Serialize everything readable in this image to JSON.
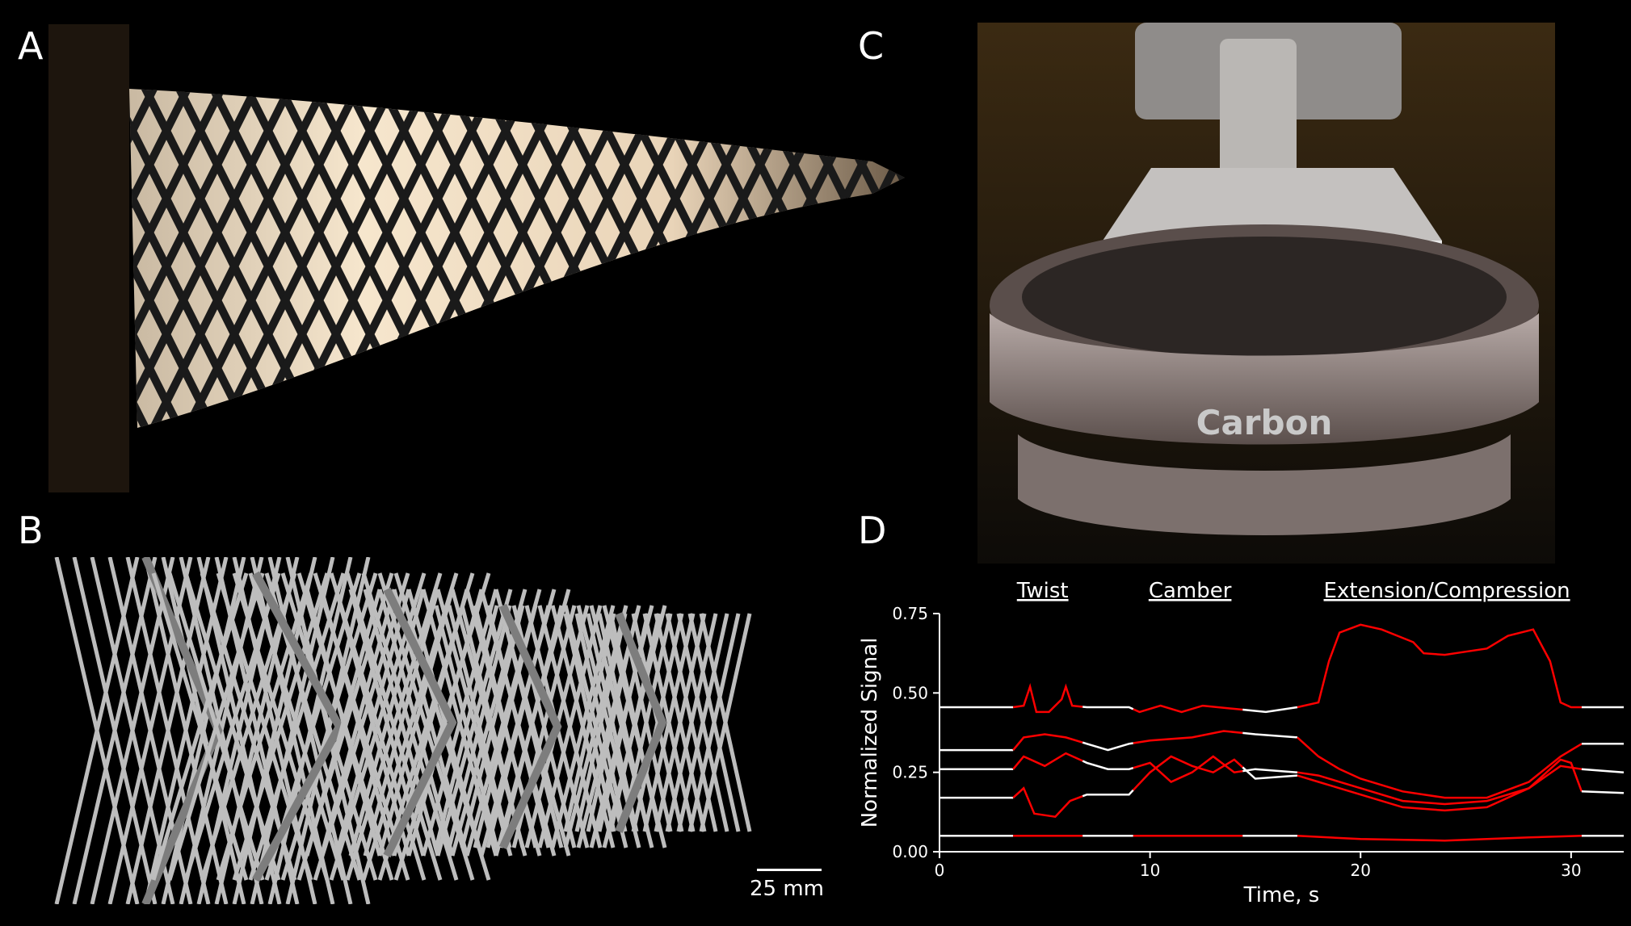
{
  "panels": {
    "a": {
      "letter": "A"
    },
    "b": {
      "letter": "B",
      "scalebar": "25 mm"
    },
    "c": {
      "letter": "C",
      "brand_text": "Carbon"
    },
    "d": {
      "letter": "D"
    }
  },
  "chart_data": {
    "type": "line",
    "title": "",
    "xlabel": "Time, s",
    "ylabel": "Normalized Signal",
    "xlim": [
      0,
      32.5
    ],
    "ylim": [
      0,
      0.75
    ],
    "xticks": [
      0,
      10,
      20,
      30
    ],
    "yticks": [
      "0.00",
      "0.25",
      "0.50",
      "0.75"
    ],
    "annotations": [
      "Twist",
      "Camber",
      "Extension/Compression"
    ],
    "colors": {
      "active": "#ff0000",
      "rest": "#ffffff",
      "axes": "#ffffff"
    },
    "series": [
      {
        "values": [
          [
            0,
            0.455
          ],
          [
            3.5,
            0.455
          ],
          [
            4.0,
            0.46
          ],
          [
            4.3,
            0.52
          ],
          [
            4.6,
            0.44
          ],
          [
            5.2,
            0.44
          ],
          [
            5.8,
            0.48
          ],
          [
            6.0,
            0.52
          ],
          [
            6.3,
            0.46
          ],
          [
            7,
            0.455
          ],
          [
            9,
            0.455
          ],
          [
            9.5,
            0.44
          ],
          [
            10.5,
            0.46
          ],
          [
            11.5,
            0.44
          ],
          [
            12.5,
            0.46
          ],
          [
            14,
            0.45
          ],
          [
            15.5,
            0.44
          ],
          [
            17,
            0.455
          ],
          [
            18,
            0.47
          ],
          [
            18.5,
            0.6
          ],
          [
            19,
            0.69
          ],
          [
            20,
            0.715
          ],
          [
            21,
            0.7
          ],
          [
            22.5,
            0.66
          ],
          [
            23,
            0.625
          ],
          [
            24,
            0.62
          ],
          [
            25,
            0.63
          ],
          [
            26,
            0.64
          ],
          [
            27,
            0.68
          ],
          [
            28.2,
            0.7
          ],
          [
            29,
            0.6
          ],
          [
            29.5,
            0.47
          ],
          [
            30,
            0.455
          ],
          [
            32.5,
            0.455
          ]
        ]
      },
      {
        "values": [
          [
            0,
            0.32
          ],
          [
            3.5,
            0.32
          ],
          [
            4,
            0.36
          ],
          [
            5,
            0.37
          ],
          [
            6,
            0.36
          ],
          [
            7,
            0.34
          ],
          [
            8,
            0.32
          ],
          [
            9,
            0.34
          ],
          [
            10,
            0.35
          ],
          [
            12,
            0.36
          ],
          [
            13.5,
            0.38
          ],
          [
            15,
            0.37
          ],
          [
            17,
            0.36
          ],
          [
            18,
            0.3
          ],
          [
            19,
            0.26
          ],
          [
            20,
            0.23
          ],
          [
            22,
            0.19
          ],
          [
            24,
            0.17
          ],
          [
            26,
            0.17
          ],
          [
            28,
            0.22
          ],
          [
            29.5,
            0.3
          ],
          [
            30.5,
            0.34
          ],
          [
            32.5,
            0.34
          ]
        ]
      },
      {
        "values": [
          [
            0,
            0.26
          ],
          [
            3.5,
            0.26
          ],
          [
            4,
            0.3
          ],
          [
            5,
            0.27
          ],
          [
            6,
            0.31
          ],
          [
            7,
            0.28
          ],
          [
            8,
            0.26
          ],
          [
            9,
            0.26
          ],
          [
            10,
            0.28
          ],
          [
            11,
            0.22
          ],
          [
            12,
            0.25
          ],
          [
            13,
            0.3
          ],
          [
            14,
            0.25
          ],
          [
            15,
            0.26
          ],
          [
            17,
            0.25
          ],
          [
            18,
            0.24
          ],
          [
            20,
            0.2
          ],
          [
            22,
            0.16
          ],
          [
            24,
            0.15
          ],
          [
            26,
            0.16
          ],
          [
            28,
            0.2
          ],
          [
            29.5,
            0.27
          ],
          [
            30.5,
            0.26
          ],
          [
            32.5,
            0.25
          ]
        ]
      },
      {
        "values": [
          [
            0,
            0.17
          ],
          [
            3.5,
            0.17
          ],
          [
            4,
            0.2
          ],
          [
            4.5,
            0.12
          ],
          [
            5.5,
            0.11
          ],
          [
            6.2,
            0.16
          ],
          [
            7,
            0.18
          ],
          [
            9,
            0.18
          ],
          [
            10,
            0.25
          ],
          [
            11,
            0.3
          ],
          [
            12,
            0.27
          ],
          [
            13,
            0.25
          ],
          [
            14,
            0.29
          ],
          [
            15,
            0.23
          ],
          [
            17,
            0.24
          ],
          [
            18,
            0.22
          ],
          [
            20,
            0.18
          ],
          [
            22,
            0.14
          ],
          [
            24,
            0.13
          ],
          [
            26,
            0.14
          ],
          [
            28,
            0.2
          ],
          [
            29.5,
            0.29
          ],
          [
            30,
            0.28
          ],
          [
            30.5,
            0.19
          ],
          [
            32.5,
            0.185
          ]
        ]
      },
      {
        "values": [
          [
            0,
            0.05
          ],
          [
            3.5,
            0.05
          ],
          [
            6,
            0.05
          ],
          [
            9,
            0.05
          ],
          [
            12,
            0.05
          ],
          [
            15,
            0.05
          ],
          [
            17,
            0.05
          ],
          [
            20,
            0.04
          ],
          [
            24,
            0.035
          ],
          [
            28,
            0.045
          ],
          [
            30.5,
            0.05
          ],
          [
            32.5,
            0.05
          ]
        ]
      }
    ],
    "segments": [
      {
        "label": "Twist",
        "x": [
          3.5,
          6.8
        ]
      },
      {
        "label": "Camber",
        "x": [
          9.2,
          14.4
        ]
      },
      {
        "label": "Extension/Compression",
        "x": [
          17.0,
          30.5
        ]
      }
    ]
  }
}
